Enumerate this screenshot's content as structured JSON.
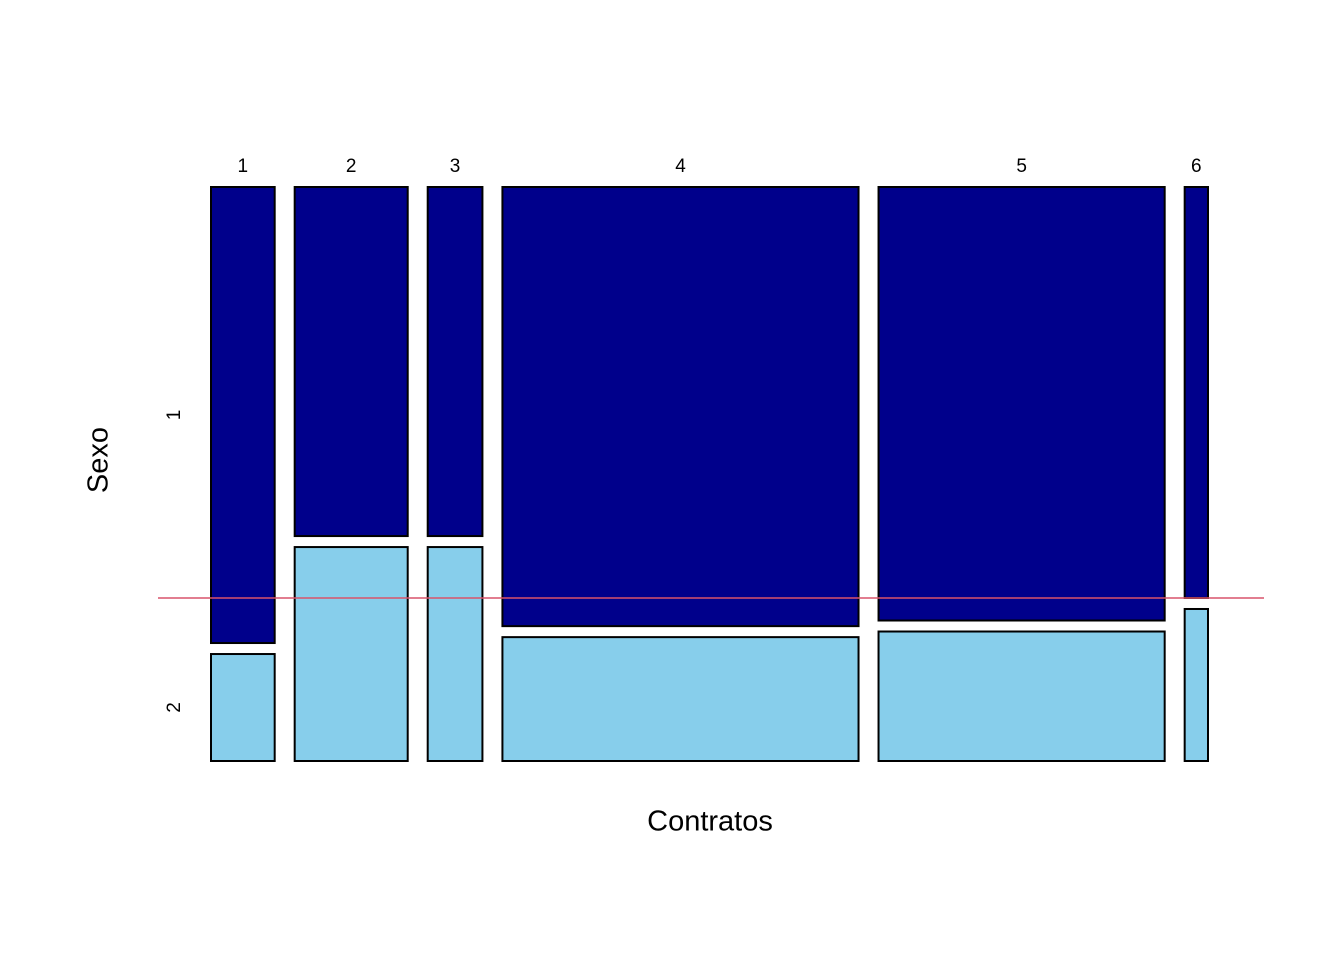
{
  "chart_data": {
    "type": "mosaic",
    "x_label": "Contratos",
    "y_label": "Sexo",
    "categories": [
      "1",
      "2",
      "3",
      "4",
      "5",
      "6"
    ],
    "widths": [
      7.1,
      12.6,
      6.1,
      39.7,
      31.9,
      2.6
    ],
    "series": [
      {
        "name": "1",
        "color": "#00008b",
        "values": [
          81,
          62,
          62,
          78,
          77,
          73
        ]
      },
      {
        "name": "2",
        "color": "#87ceeb",
        "values": [
          19,
          38,
          38,
          22,
          23,
          27
        ]
      }
    ],
    "reference_line": {
      "value": 73,
      "color": "#d9536b"
    }
  }
}
